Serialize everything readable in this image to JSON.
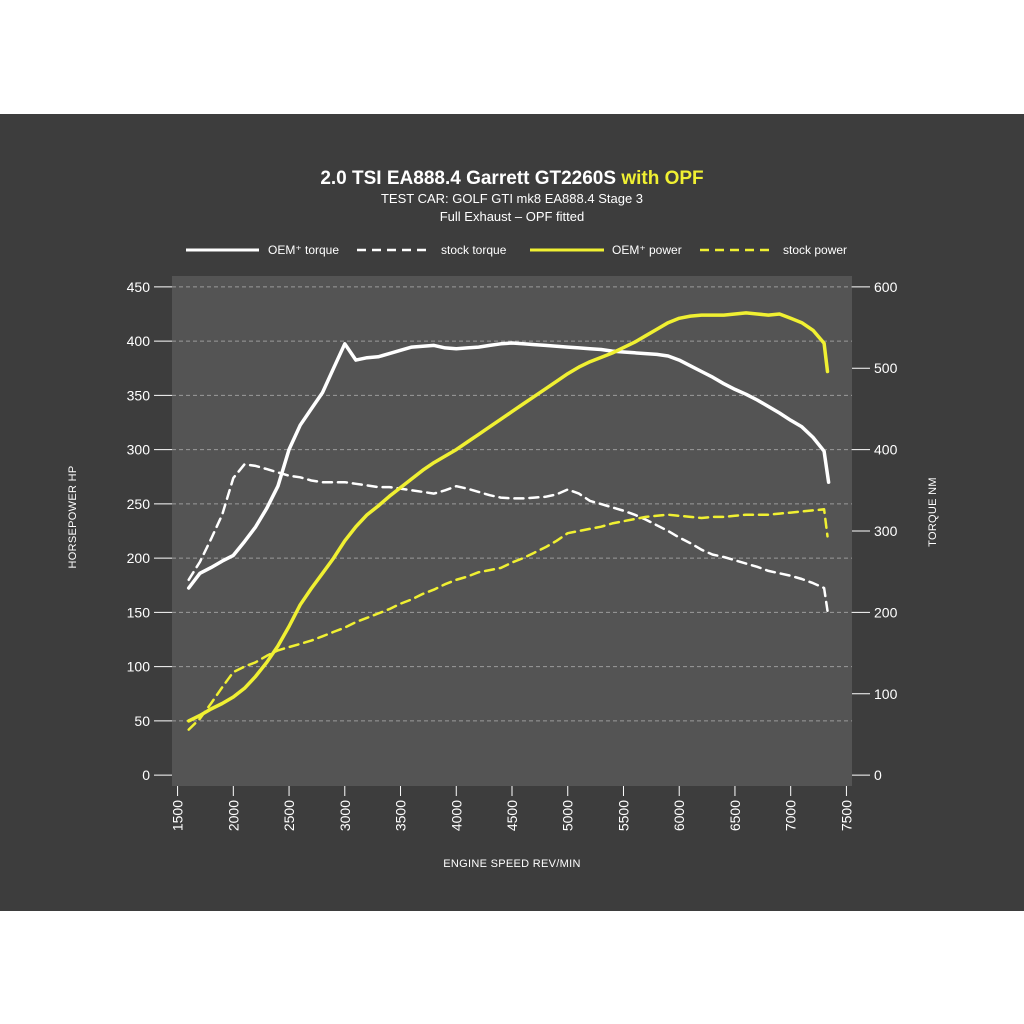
{
  "colors": {
    "background": "#3d3d3d",
    "plot_area": "#545454",
    "torque": "#ffffff",
    "power": "#f0f032",
    "grid": "#9a9a9a"
  },
  "chart_data": {
    "type": "line",
    "title": "2.0 TSI EA888.4 Garrett GT2260S",
    "title_highlight": "with OPF",
    "subtitle_lines": [
      "TEST CAR:  GOLF GTI mk8 EA888.4 Stage 3",
      "Full Exhaust – OPF fitted"
    ],
    "xlabel": "ENGINE SPEED REV/MIN",
    "ylabel_left": "HORSEPOWER HP",
    "ylabel_right": "TORQUE NM",
    "xlim": [
      1450,
      7550
    ],
    "ylim_left": [
      -10,
      460
    ],
    "ylim_right": [
      -13.33,
      613.33
    ],
    "x_ticks": [
      "1500",
      "2000",
      "2500",
      "3000",
      "3500",
      "4000",
      "4500",
      "5000",
      "5500",
      "6000",
      "6500",
      "7000",
      "7500"
    ],
    "y_ticks_left": [
      "0",
      "50",
      "100",
      "150",
      "200",
      "250",
      "300",
      "350",
      "400",
      "450"
    ],
    "y_ticks_right": [
      "0",
      "100",
      "200",
      "300",
      "400",
      "500",
      "600"
    ],
    "grid": true,
    "legend_position": "top",
    "series": [
      {
        "name": "OEM⁺ torque",
        "axis": "right",
        "color": "#ffffff",
        "dashed": false,
        "points": [
          [
            1600,
            230
          ],
          [
            1700,
            248
          ],
          [
            1800,
            255
          ],
          [
            1900,
            263
          ],
          [
            2000,
            270
          ],
          [
            2100,
            287
          ],
          [
            2200,
            305
          ],
          [
            2300,
            328
          ],
          [
            2400,
            355
          ],
          [
            2500,
            400
          ],
          [
            2600,
            430
          ],
          [
            2700,
            450
          ],
          [
            2800,
            470
          ],
          [
            2900,
            500
          ],
          [
            3000,
            530
          ],
          [
            3100,
            510
          ],
          [
            3200,
            513
          ],
          [
            3300,
            514
          ],
          [
            3400,
            518
          ],
          [
            3500,
            522
          ],
          [
            3600,
            526
          ],
          [
            3700,
            527
          ],
          [
            3800,
            528
          ],
          [
            3900,
            525
          ],
          [
            4000,
            524
          ],
          [
            4100,
            525
          ],
          [
            4200,
            526
          ],
          [
            4300,
            528
          ],
          [
            4400,
            530
          ],
          [
            4500,
            531
          ],
          [
            4600,
            530
          ],
          [
            4700,
            529
          ],
          [
            4800,
            528
          ],
          [
            4900,
            527
          ],
          [
            5000,
            526
          ],
          [
            5100,
            525
          ],
          [
            5200,
            524
          ],
          [
            5300,
            523
          ],
          [
            5400,
            521
          ],
          [
            5500,
            520
          ],
          [
            5600,
            519
          ],
          [
            5700,
            518
          ],
          [
            5800,
            517
          ],
          [
            5900,
            515
          ],
          [
            6000,
            510
          ],
          [
            6100,
            503
          ],
          [
            6200,
            496
          ],
          [
            6300,
            489
          ],
          [
            6400,
            481
          ],
          [
            6500,
            474
          ],
          [
            6600,
            468
          ],
          [
            6700,
            461
          ],
          [
            6800,
            453
          ],
          [
            6900,
            445
          ],
          [
            7000,
            436
          ],
          [
            7100,
            428
          ],
          [
            7200,
            415
          ],
          [
            7300,
            398
          ],
          [
            7340,
            360
          ]
        ]
      },
      {
        "name": "stock torque",
        "axis": "right",
        "color": "#ffffff",
        "dashed": true,
        "points": [
          [
            1600,
            240
          ],
          [
            1700,
            262
          ],
          [
            1800,
            290
          ],
          [
            1900,
            320
          ],
          [
            2000,
            365
          ],
          [
            2100,
            382
          ],
          [
            2200,
            380
          ],
          [
            2300,
            376
          ],
          [
            2400,
            372
          ],
          [
            2500,
            368
          ],
          [
            2600,
            366
          ],
          [
            2700,
            362
          ],
          [
            2800,
            360
          ],
          [
            2900,
            360
          ],
          [
            3000,
            360
          ],
          [
            3100,
            358
          ],
          [
            3200,
            356
          ],
          [
            3300,
            354
          ],
          [
            3400,
            354
          ],
          [
            3500,
            352
          ],
          [
            3600,
            350
          ],
          [
            3700,
            348
          ],
          [
            3800,
            346
          ],
          [
            3900,
            350
          ],
          [
            4000,
            355
          ],
          [
            4100,
            352
          ],
          [
            4200,
            348
          ],
          [
            4300,
            344
          ],
          [
            4400,
            341
          ],
          [
            4500,
            340
          ],
          [
            4600,
            340
          ],
          [
            4700,
            341
          ],
          [
            4800,
            342
          ],
          [
            4900,
            345
          ],
          [
            5000,
            351
          ],
          [
            5100,
            346
          ],
          [
            5200,
            337
          ],
          [
            5300,
            333
          ],
          [
            5400,
            329
          ],
          [
            5500,
            325
          ],
          [
            5600,
            320
          ],
          [
            5700,
            314
          ],
          [
            5800,
            307
          ],
          [
            5900,
            300
          ],
          [
            6000,
            292
          ],
          [
            6100,
            285
          ],
          [
            6200,
            277
          ],
          [
            6300,
            271
          ],
          [
            6400,
            268
          ],
          [
            6500,
            264
          ],
          [
            6600,
            260
          ],
          [
            6700,
            256
          ],
          [
            6800,
            251
          ],
          [
            6900,
            248
          ],
          [
            7000,
            245
          ],
          [
            7100,
            241
          ],
          [
            7200,
            236
          ],
          [
            7300,
            230
          ],
          [
            7330,
            202
          ]
        ]
      },
      {
        "name": "OEM⁺ power",
        "axis": "left",
        "color": "#f0f032",
        "dashed": false,
        "points": [
          [
            1600,
            50
          ],
          [
            1700,
            55
          ],
          [
            1800,
            61
          ],
          [
            1900,
            66
          ],
          [
            2000,
            72
          ],
          [
            2100,
            80
          ],
          [
            2200,
            91
          ],
          [
            2300,
            104
          ],
          [
            2400,
            119
          ],
          [
            2500,
            137
          ],
          [
            2600,
            157
          ],
          [
            2700,
            172
          ],
          [
            2800,
            186
          ],
          [
            2900,
            200
          ],
          [
            3000,
            216
          ],
          [
            3100,
            229
          ],
          [
            3200,
            240
          ],
          [
            3300,
            248
          ],
          [
            3400,
            257
          ],
          [
            3500,
            265
          ],
          [
            3600,
            273
          ],
          [
            3700,
            281
          ],
          [
            3800,
            288
          ],
          [
            3900,
            294
          ],
          [
            4000,
            300
          ],
          [
            4100,
            307
          ],
          [
            4200,
            314
          ],
          [
            4300,
            321
          ],
          [
            4400,
            328
          ],
          [
            4500,
            335
          ],
          [
            4600,
            342
          ],
          [
            4700,
            349
          ],
          [
            4800,
            356
          ],
          [
            4900,
            363
          ],
          [
            5000,
            370
          ],
          [
            5100,
            376
          ],
          [
            5200,
            381
          ],
          [
            5300,
            385
          ],
          [
            5400,
            389
          ],
          [
            5500,
            394
          ],
          [
            5600,
            399
          ],
          [
            5700,
            405
          ],
          [
            5800,
            411
          ],
          [
            5900,
            417
          ],
          [
            6000,
            421
          ],
          [
            6100,
            423
          ],
          [
            6200,
            424
          ],
          [
            6300,
            424
          ],
          [
            6400,
            424
          ],
          [
            6500,
            425
          ],
          [
            6600,
            426
          ],
          [
            6700,
            425
          ],
          [
            6800,
            424
          ],
          [
            6900,
            425
          ],
          [
            7000,
            421
          ],
          [
            7100,
            417
          ],
          [
            7200,
            410
          ],
          [
            7300,
            398
          ],
          [
            7330,
            372
          ]
        ]
      },
      {
        "name": "stock power",
        "axis": "left",
        "color": "#f0f032",
        "dashed": true,
        "points": [
          [
            1600,
            42
          ],
          [
            1700,
            52
          ],
          [
            1800,
            66
          ],
          [
            1900,
            81
          ],
          [
            2000,
            95
          ],
          [
            2100,
            100
          ],
          [
            2200,
            104
          ],
          [
            2300,
            110
          ],
          [
            2400,
            115
          ],
          [
            2500,
            118
          ],
          [
            2600,
            121
          ],
          [
            2700,
            124
          ],
          [
            2800,
            128
          ],
          [
            2900,
            132
          ],
          [
            3000,
            136
          ],
          [
            3100,
            141
          ],
          [
            3200,
            145
          ],
          [
            3300,
            149
          ],
          [
            3400,
            153
          ],
          [
            3500,
            158
          ],
          [
            3600,
            162
          ],
          [
            3700,
            167
          ],
          [
            3800,
            171
          ],
          [
            3900,
            176
          ],
          [
            4000,
            180
          ],
          [
            4100,
            183
          ],
          [
            4200,
            187
          ],
          [
            4300,
            189
          ],
          [
            4400,
            191
          ],
          [
            4500,
            196
          ],
          [
            4600,
            200
          ],
          [
            4700,
            205
          ],
          [
            4800,
            210
          ],
          [
            4900,
            216
          ],
          [
            5000,
            223
          ],
          [
            5100,
            225
          ],
          [
            5200,
            227
          ],
          [
            5300,
            229
          ],
          [
            5400,
            232
          ],
          [
            5500,
            234
          ],
          [
            5600,
            236
          ],
          [
            5700,
            238
          ],
          [
            5800,
            239
          ],
          [
            5900,
            240
          ],
          [
            6000,
            239
          ],
          [
            6100,
            238
          ],
          [
            6200,
            237
          ],
          [
            6300,
            238
          ],
          [
            6400,
            238
          ],
          [
            6500,
            239
          ],
          [
            6600,
            240
          ],
          [
            6700,
            240
          ],
          [
            6800,
            240
          ],
          [
            6900,
            241
          ],
          [
            7000,
            242
          ],
          [
            7100,
            243
          ],
          [
            7200,
            244
          ],
          [
            7300,
            245
          ],
          [
            7330,
            220
          ]
        ]
      }
    ]
  }
}
